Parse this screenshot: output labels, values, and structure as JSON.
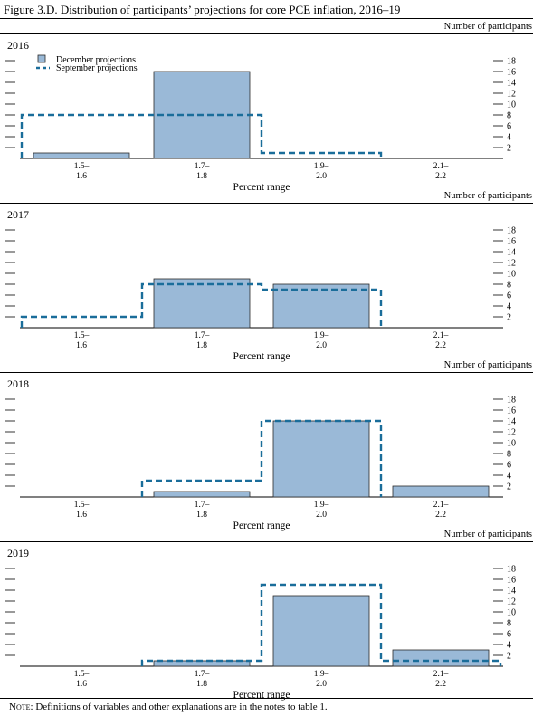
{
  "figure": {
    "title": "Figure 3.D. Distribution of participants’ projections for core PCE inflation, 2016–19",
    "note_label": "Note:",
    "note_text": " Definitions of variables and other explanations are in the notes to table 1."
  },
  "colors": {
    "bar_fill": "#9ab9d7",
    "bar_stroke": "#2a2a2a",
    "dash_line": "#1a6d9a",
    "axis": "#000000"
  },
  "chart_data": [
    {
      "type": "bar",
      "title": "2016",
      "y_axis_title": "Number of participants",
      "xlabel": "Percent range",
      "categories": [
        [
          "1.5–",
          "1.6"
        ],
        [
          "1.7–",
          "1.8"
        ],
        [
          "1.9–",
          "2.0"
        ],
        [
          "2.1–",
          "2.2"
        ]
      ],
      "ylim": [
        0,
        20
      ],
      "yticks": [
        2,
        4,
        6,
        8,
        10,
        12,
        14,
        16,
        18
      ],
      "series": [
        {
          "name": "December projections",
          "style": "bar",
          "values": [
            1,
            16,
            0,
            0
          ]
        },
        {
          "name": "September projections",
          "style": "dashed-step",
          "values": [
            8,
            8,
            1,
            0
          ]
        }
      ],
      "legend": "top-left"
    },
    {
      "type": "bar",
      "title": "2017",
      "y_axis_title": "Number of participants",
      "xlabel": "Percent range",
      "categories": [
        [
          "1.5–",
          "1.6"
        ],
        [
          "1.7–",
          "1.8"
        ],
        [
          "1.9–",
          "2.0"
        ],
        [
          "2.1–",
          "2.2"
        ]
      ],
      "ylim": [
        0,
        20
      ],
      "yticks": [
        2,
        4,
        6,
        8,
        10,
        12,
        14,
        16,
        18
      ],
      "series": [
        {
          "name": "December projections",
          "style": "bar",
          "values": [
            0,
            9,
            8,
            0
          ]
        },
        {
          "name": "September projections",
          "style": "dashed-step",
          "values": [
            2,
            8,
            7,
            0
          ]
        }
      ]
    },
    {
      "type": "bar",
      "title": "2018",
      "y_axis_title": "Number of participants",
      "xlabel": "Percent range",
      "categories": [
        [
          "1.5–",
          "1.6"
        ],
        [
          "1.7–",
          "1.8"
        ],
        [
          "1.9–",
          "2.0"
        ],
        [
          "2.1–",
          "2.2"
        ]
      ],
      "ylim": [
        0,
        20
      ],
      "yticks": [
        2,
        4,
        6,
        8,
        10,
        12,
        14,
        16,
        18
      ],
      "series": [
        {
          "name": "December projections",
          "style": "bar",
          "values": [
            0,
            1,
            14,
            2
          ]
        },
        {
          "name": "September projections",
          "style": "dashed-step",
          "values": [
            0,
            3,
            14,
            0
          ]
        }
      ]
    },
    {
      "type": "bar",
      "title": "2019",
      "y_axis_title": "Number of participants",
      "xlabel": "Percent range",
      "categories": [
        [
          "1.5–",
          "1.6"
        ],
        [
          "1.7–",
          "1.8"
        ],
        [
          "1.9–",
          "2.0"
        ],
        [
          "2.1–",
          "2.2"
        ]
      ],
      "ylim": [
        0,
        20
      ],
      "yticks": [
        2,
        4,
        6,
        8,
        10,
        12,
        14,
        16,
        18
      ],
      "series": [
        {
          "name": "December projections",
          "style": "bar",
          "values": [
            0,
            1,
            13,
            3
          ]
        },
        {
          "name": "September projections",
          "style": "dashed-step",
          "values": [
            0,
            1,
            15,
            1
          ]
        }
      ]
    }
  ]
}
